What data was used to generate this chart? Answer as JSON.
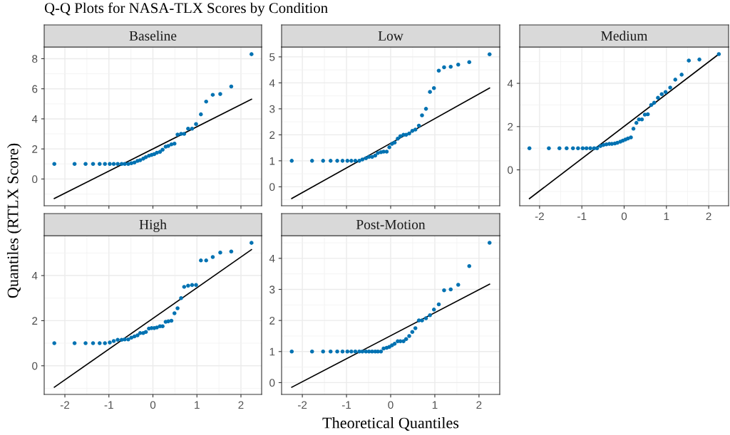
{
  "chart_data": [
    {
      "type": "scatter",
      "title": "Baseline",
      "ylabel": "Quantiles (RTLX Score)",
      "annotations": [
        "Q-Q Plots for NASA-TLX Scores by Condition"
      ],
      "marker": "circle",
      "grid": true,
      "tick_labels": "y",
      "xlim": [
        -2.47,
        2.47
      ],
      "xticks": [
        -2,
        -1,
        0,
        1,
        2
      ],
      "ylim": [
        -1.78,
        8.78
      ],
      "yticks": [
        0,
        2,
        4,
        6,
        8
      ],
      "series": [
        {
          "color": "#0072b2",
          "x": [
            -2.24,
            -1.78,
            -1.53,
            -1.36,
            -1.21,
            -1.09,
            -0.98,
            -0.89,
            -0.8,
            -0.71,
            -0.64,
            -0.56,
            -0.49,
            -0.42,
            -0.35,
            -0.29,
            -0.22,
            -0.16,
            -0.09,
            -0.03,
            0.03,
            0.09,
            0.16,
            0.22,
            0.29,
            0.35,
            0.42,
            0.49,
            0.56,
            0.64,
            0.71,
            0.8,
            0.89,
            0.98,
            1.09,
            1.21,
            1.36,
            1.53,
            1.78,
            2.24
          ],
          "values": [
            1,
            1,
            1,
            1,
            1,
            1,
            1,
            1,
            1,
            1,
            1,
            1,
            1.05,
            1.1,
            1.2,
            1.25,
            1.35,
            1.45,
            1.55,
            1.6,
            1.65,
            1.75,
            1.8,
            1.95,
            2.15,
            2.2,
            2.3,
            2.35,
            2.95,
            3.0,
            3.0,
            3.35,
            3.35,
            3.65,
            4.3,
            5.15,
            5.6,
            5.65,
            6.15,
            8.3
          ]
        },
        {
          "type": "line",
          "color": "#000000",
          "x": [
            -2.24,
            2.24
          ],
          "values": [
            -1.3,
            5.3
          ],
          "marker": "none"
        }
      ]
    },
    {
      "type": "scatter",
      "title": "Low",
      "marker": "circle",
      "grid": true,
      "tick_labels": "y",
      "xlim": [
        -2.47,
        2.47
      ],
      "xticks": [
        -2,
        -1,
        0,
        1,
        2
      ],
      "ylim": [
        -0.73,
        5.38
      ],
      "yticks": [
        0,
        1,
        2,
        3,
        4,
        5
      ],
      "series": [
        {
          "color": "#0072b2",
          "x": [
            -2.24,
            -1.78,
            -1.53,
            -1.36,
            -1.21,
            -1.09,
            -0.98,
            -0.89,
            -0.8,
            -0.71,
            -0.64,
            -0.56,
            -0.49,
            -0.42,
            -0.35,
            -0.29,
            -0.22,
            -0.16,
            -0.09,
            -0.03,
            0.03,
            0.09,
            0.16,
            0.22,
            0.29,
            0.35,
            0.42,
            0.49,
            0.56,
            0.64,
            0.71,
            0.8,
            0.89,
            0.98,
            1.09,
            1.21,
            1.36,
            1.53,
            1.78,
            2.24
          ],
          "values": [
            1,
            1,
            1,
            1,
            1,
            1,
            1,
            1,
            1,
            1,
            1.05,
            1.1,
            1.15,
            1.15,
            1.2,
            1.3,
            1.33,
            1.35,
            1.35,
            1.52,
            1.65,
            1.7,
            1.85,
            1.95,
            2.0,
            2.0,
            2.05,
            2.15,
            2.2,
            2.35,
            2.75,
            3.0,
            3.65,
            3.8,
            4.47,
            4.6,
            4.62,
            4.7,
            4.8,
            5.1
          ]
        },
        {
          "type": "line",
          "color": "#000000",
          "x": [
            -2.24,
            2.24
          ],
          "values": [
            -0.45,
            3.8
          ],
          "marker": "none"
        }
      ]
    },
    {
      "type": "scatter",
      "title": "Medium",
      "marker": "circle",
      "grid": true,
      "xlim": [
        -2.47,
        2.47
      ],
      "xticks": [
        -2,
        -1,
        0,
        1,
        2
      ],
      "ylim": [
        -1.66,
        5.68
      ],
      "yticks": [
        0,
        2,
        4
      ],
      "series": [
        {
          "color": "#0072b2",
          "x": [
            -2.24,
            -1.78,
            -1.53,
            -1.36,
            -1.21,
            -1.09,
            -0.98,
            -0.89,
            -0.8,
            -0.71,
            -0.64,
            -0.56,
            -0.49,
            -0.42,
            -0.35,
            -0.29,
            -0.22,
            -0.16,
            -0.09,
            -0.03,
            0.03,
            0.09,
            0.16,
            0.22,
            0.29,
            0.35,
            0.42,
            0.49,
            0.56,
            0.64,
            0.71,
            0.8,
            0.89,
            0.98,
            1.09,
            1.21,
            1.36,
            1.53,
            1.78,
            2.24
          ],
          "values": [
            1,
            1,
            1,
            1,
            1,
            1,
            1,
            1,
            1,
            1,
            1,
            1.1,
            1.15,
            1.18,
            1.2,
            1.2,
            1.22,
            1.25,
            1.3,
            1.35,
            1.4,
            1.45,
            1.5,
            1.9,
            2.17,
            2.33,
            2.33,
            2.55,
            2.57,
            3.0,
            3.1,
            3.33,
            3.5,
            3.6,
            3.8,
            4.17,
            4.4,
            5.05,
            5.1,
            5.35
          ]
        },
        {
          "type": "line",
          "color": "#000000",
          "x": [
            -2.24,
            2.24
          ],
          "values": [
            -1.33,
            5.35
          ],
          "marker": "none"
        }
      ]
    },
    {
      "type": "scatter",
      "title": "High",
      "marker": "circle",
      "grid": true,
      "xlim": [
        -2.47,
        2.47
      ],
      "xticks": [
        -2,
        -1,
        0,
        1,
        2
      ],
      "ylim": [
        -1.27,
        5.77
      ],
      "yticks": [
        0,
        2,
        4
      ],
      "series": [
        {
          "color": "#0072b2",
          "x": [
            -2.24,
            -1.78,
            -1.53,
            -1.36,
            -1.21,
            -1.09,
            -0.98,
            -0.89,
            -0.8,
            -0.71,
            -0.64,
            -0.56,
            -0.49,
            -0.42,
            -0.35,
            -0.29,
            -0.22,
            -0.16,
            -0.09,
            -0.03,
            0.03,
            0.09,
            0.16,
            0.22,
            0.29,
            0.35,
            0.42,
            0.49,
            0.56,
            0.64,
            0.71,
            0.8,
            0.89,
            0.98,
            1.09,
            1.21,
            1.36,
            1.53,
            1.78,
            2.24
          ],
          "values": [
            1,
            1,
            1,
            1,
            1,
            1,
            1.03,
            1.1,
            1.15,
            1.15,
            1.17,
            1.17,
            1.25,
            1.3,
            1.35,
            1.45,
            1.45,
            1.5,
            1.65,
            1.67,
            1.67,
            1.7,
            1.75,
            1.75,
            1.95,
            1.97,
            2.0,
            2.33,
            2.55,
            3.0,
            3.5,
            3.55,
            3.58,
            3.58,
            4.67,
            4.67,
            4.82,
            5.02,
            5.07,
            5.45
          ]
        },
        {
          "type": "line",
          "color": "#000000",
          "x": [
            -2.24,
            2.24
          ],
          "values": [
            -0.95,
            5.15
          ],
          "marker": "none"
        }
      ]
    },
    {
      "type": "scatter",
      "title": "Post-Motion",
      "xlabel": "Theoretical Quantiles",
      "marker": "circle",
      "grid": true,
      "xlim": [
        -2.47,
        2.47
      ],
      "xticks": [
        -2,
        -1,
        0,
        1,
        2
      ],
      "ylim": [
        -0.38,
        4.73
      ],
      "yticks": [
        0,
        1,
        2,
        3,
        4
      ],
      "series": [
        {
          "color": "#0072b2",
          "x": [
            -2.24,
            -1.78,
            -1.53,
            -1.36,
            -1.21,
            -1.09,
            -0.98,
            -0.89,
            -0.8,
            -0.71,
            -0.64,
            -0.56,
            -0.49,
            -0.42,
            -0.35,
            -0.29,
            -0.22,
            -0.16,
            -0.09,
            -0.03,
            0.03,
            0.09,
            0.16,
            0.22,
            0.29,
            0.35,
            0.42,
            0.49,
            0.56,
            0.64,
            0.71,
            0.8,
            0.89,
            0.98,
            1.09,
            1.21,
            1.36,
            1.53,
            1.78,
            2.24
          ],
          "values": [
            1,
            1,
            1,
            1,
            1,
            1,
            1,
            1,
            1,
            1,
            1,
            1,
            1,
            1,
            1,
            1,
            1,
            1.1,
            1.12,
            1.15,
            1.2,
            1.25,
            1.33,
            1.33,
            1.33,
            1.4,
            1.5,
            1.63,
            1.75,
            2.0,
            2.0,
            2.07,
            2.17,
            2.35,
            2.52,
            2.97,
            3.0,
            3.15,
            3.75,
            4.5
          ]
        },
        {
          "type": "line",
          "color": "#000000",
          "x": [
            -2.24,
            2.24
          ],
          "values": [
            -0.15,
            3.17
          ],
          "marker": "none"
        }
      ]
    }
  ]
}
